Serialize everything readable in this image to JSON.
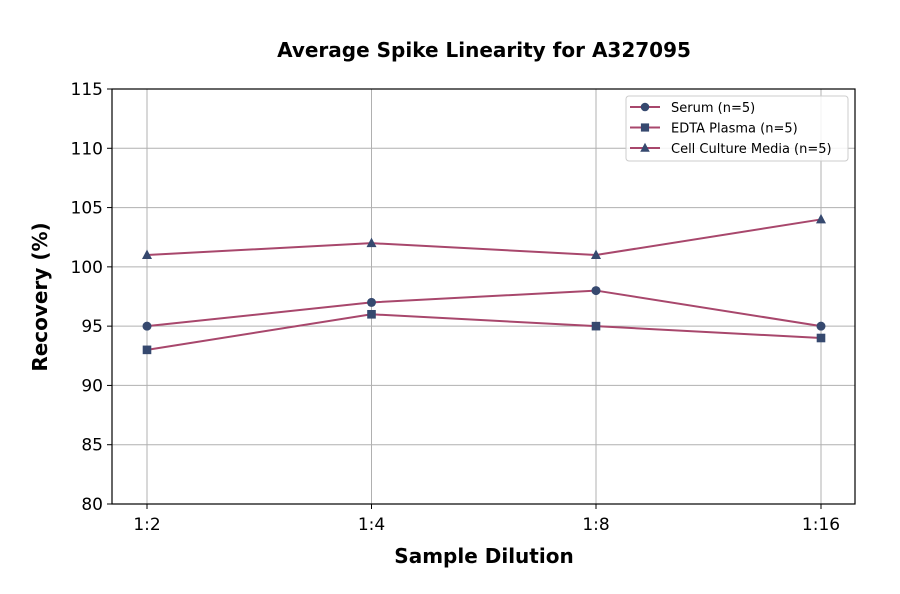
{
  "chart_data": {
    "type": "line",
    "title": "Average Spike Linearity for A327095",
    "xlabel": "Sample Dilution",
    "ylabel": "Recovery (%)",
    "categories": [
      "1:2",
      "1:4",
      "1:8",
      "1:16"
    ],
    "ylim": [
      80,
      115
    ],
    "yticks": [
      80,
      85,
      90,
      95,
      100,
      105,
      110,
      115
    ],
    "grid": true,
    "legend_position": "top-right",
    "line_color": "#a8476c",
    "marker_color": "#36496f",
    "series": [
      {
        "name": "Serum (n=5)",
        "marker": "circle",
        "values": [
          95,
          97,
          98,
          95
        ]
      },
      {
        "name": "EDTA Plasma (n=5)",
        "marker": "square",
        "values": [
          93,
          96,
          95,
          94
        ]
      },
      {
        "name": "Cell Culture Media (n=5)",
        "marker": "triangle",
        "values": [
          101,
          102,
          101,
          104
        ]
      }
    ]
  }
}
